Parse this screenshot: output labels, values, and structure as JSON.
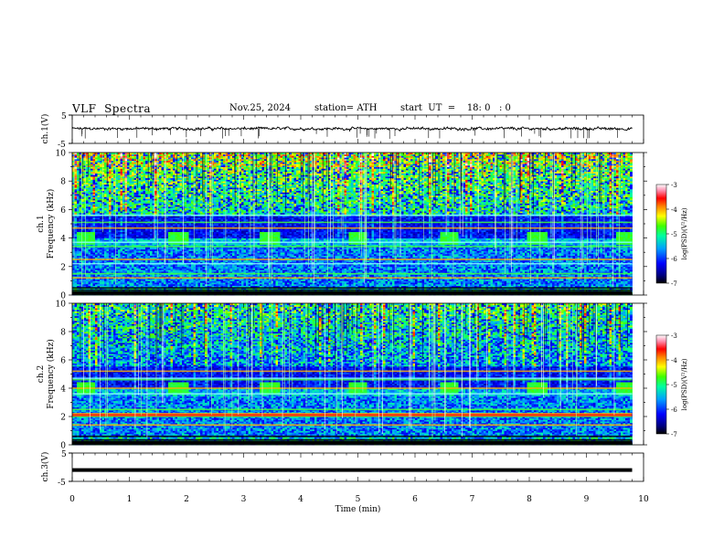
{
  "header": {
    "title": "VLF  Spectra",
    "date": "Nov.25, 2024",
    "station": "station= ATH",
    "start_ut": "start  UT  =    18: 0   : 0"
  },
  "colors": {
    "background": "#ffffff",
    "trace": "#000000",
    "cmap": [
      "#000080",
      "#0000ff",
      "#0060ff",
      "#00c0ff",
      "#00ffc0",
      "#40ff40",
      "#c0ff00",
      "#ffff00",
      "#ff8000",
      "#ff0000",
      "#ff80c0",
      "#ffffff"
    ]
  },
  "chart_data": [
    {
      "id": "ch1-waveform",
      "type": "line",
      "ylabel": "ch.1(V)",
      "ylim": [
        -5,
        5
      ],
      "yticks": [
        "5",
        "-5"
      ],
      "xlim": [
        0,
        10
      ],
      "description_values": {
        "mean": 0.2,
        "noise_amplitude": 0.8,
        "spikes": [
          3.5,
          4.1
        ]
      }
    },
    {
      "id": "ch1-spectrogram",
      "type": "heatmap",
      "ylabel": "ch.1\nFrequency (kHz)",
      "ylabel_lines": [
        "ch.1",
        "Frequency (kHz)"
      ],
      "ylim": [
        0,
        10
      ],
      "yticks": [
        "0",
        "2",
        "4",
        "6",
        "8",
        "10"
      ],
      "xlim": [
        0,
        10
      ],
      "colorbar": {
        "label": "log(PSD)(V²/Hz)",
        "range": [
          -7,
          -3
        ],
        "ticks": [
          "-3",
          "-4",
          "-5",
          "-6",
          "-7"
        ]
      },
      "bursts_min": [
        0.25,
        1.85,
        3.45,
        5.0,
        6.6,
        8.15,
        9.7
      ],
      "lines_khz": [
        0.2,
        0.35,
        0.5,
        1.2,
        1.5,
        2.2,
        2.5,
        3.4,
        3.7,
        4.7,
        5.1,
        5.6
      ]
    },
    {
      "id": "ch2-spectrogram",
      "type": "heatmap",
      "ylabel_lines": [
        "ch.2",
        "Frequency (kHz)"
      ],
      "ylim": [
        0,
        10
      ],
      "yticks": [
        "0",
        "2",
        "4",
        "6",
        "8",
        "10"
      ],
      "xlim": [
        0,
        10
      ],
      "colorbar": {
        "label": "log(PSD)(V²/Hz)",
        "range": [
          -7,
          -3
        ],
        "ticks": [
          "-3",
          "-4",
          "-5",
          "-6",
          "-7"
        ]
      },
      "bursts_min": [
        0.25,
        1.85,
        3.45,
        5.0,
        6.6,
        8.15,
        9.7
      ],
      "lines_khz": [
        0.2,
        0.35,
        0.6,
        1.4,
        2.0,
        2.1,
        2.2,
        2.5,
        3.6,
        4.0,
        4.6,
        4.7,
        5.2
      ]
    },
    {
      "id": "ch3-waveform",
      "type": "line",
      "ylabel": "ch.3(V)",
      "ylim": [
        -5,
        5
      ],
      "yticks": [
        "5",
        "-5"
      ],
      "xlim": [
        0,
        10
      ],
      "xlabel": "Time  (min)",
      "xticks": [
        "0",
        "1",
        "2",
        "3",
        "4",
        "5",
        "6",
        "7",
        "8",
        "9",
        "10"
      ],
      "level": -1.0
    }
  ]
}
